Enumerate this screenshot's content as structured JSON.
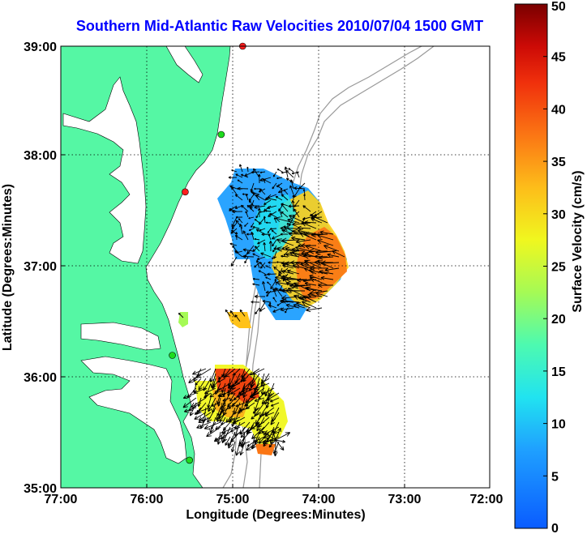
{
  "title": "Southern Mid-Atlantic Raw Velocities 2010/07/04 1500 GMT",
  "x_axis": {
    "label": "Longitude (Degrees:Minutes)",
    "ticks": [
      "77:00",
      "76:00",
      "75:00",
      "74:00",
      "73:00",
      "72:00"
    ]
  },
  "y_axis": {
    "label": "Latitude (Degrees:Minutes)",
    "ticks": [
      "39:00",
      "38:00",
      "37:00",
      "36:00",
      "35:00"
    ]
  },
  "colorbar": {
    "label": "Surface Velocity (cm/s)",
    "ticks": [
      "50",
      "45",
      "40",
      "35",
      "30",
      "25",
      "20",
      "15",
      "10",
      "5",
      "0"
    ],
    "min": 0,
    "max": 50
  },
  "colors": {
    "land": "#55f7a4",
    "water": "#ffffff",
    "title": "#0000ff",
    "bathymetry": "#999999"
  },
  "map_extent": {
    "lon": [
      -77,
      -72
    ],
    "lat": [
      35,
      39
    ]
  },
  "stations": [
    {
      "lon": -74.88,
      "lat": 39.0,
      "status": "red"
    },
    {
      "lon": -75.13,
      "lat": 38.2,
      "status": "green"
    },
    {
      "lon": -75.55,
      "lat": 37.68,
      "status": "red"
    },
    {
      "lon": -75.7,
      "lat": 36.2,
      "status": "green"
    },
    {
      "lon": -75.5,
      "lat": 35.25,
      "status": "green"
    }
  ]
}
